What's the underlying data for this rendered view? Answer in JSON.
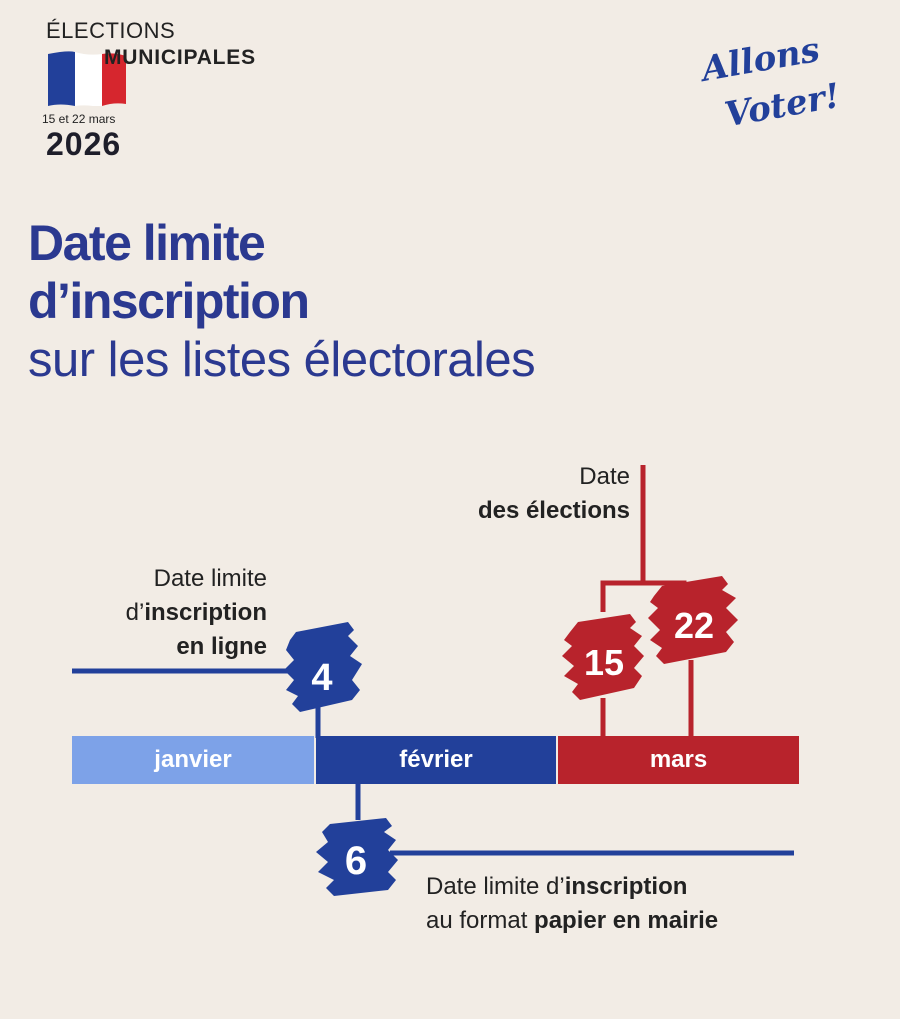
{
  "header": {
    "elections": "ÉLECTIONS",
    "municipales": "MUNICIPALES",
    "dates": "15 et 22 mars",
    "year": "2026",
    "logo_line1": "Allons",
    "logo_line2": "Voter!"
  },
  "headline": {
    "line1": "Date limite",
    "line2": "d’inscription",
    "line3": "sur les listes électorales"
  },
  "timeline": {
    "months": [
      "janvier",
      "février",
      "mars"
    ],
    "online": {
      "day": "4",
      "line1": "Date limite",
      "line2_prefix": "d’",
      "line2_bold": "inscription",
      "line3": "en ligne"
    },
    "elections": {
      "days": [
        "15",
        "22"
      ],
      "line1": "Date",
      "line2": "des élections"
    },
    "paper": {
      "day": "6",
      "line1_prefix": "Date limite d’",
      "line1_bold": "inscription",
      "line2_prefix": "au format ",
      "line2_bold": "papier en mairie"
    }
  },
  "colors": {
    "background": "#f2ece5",
    "blue": "#22409a",
    "light_blue": "#7da2e8",
    "red": "#b8232c"
  }
}
